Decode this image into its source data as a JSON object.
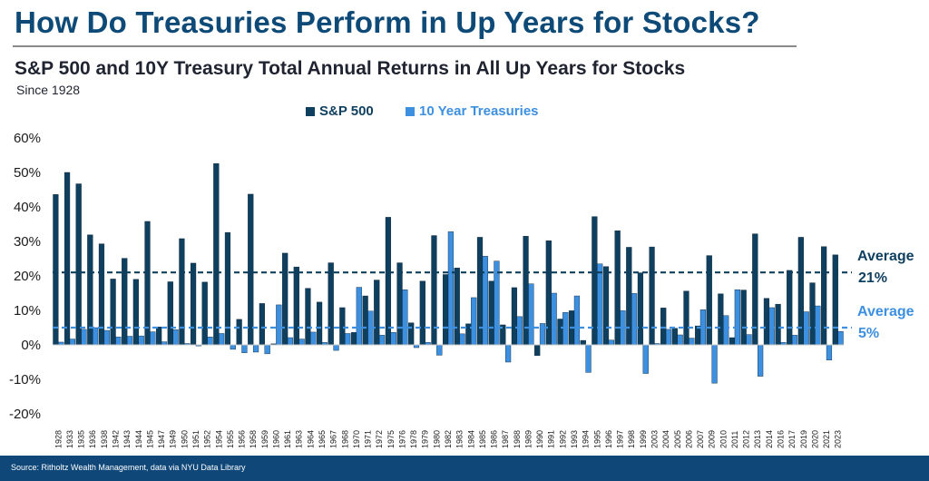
{
  "header": {
    "title": "How Do Treasuries Perform in Up Years for Stocks?",
    "subtitle": "S&P 500 and 10Y Treasury Total Annual Returns in All Up Years for Stocks",
    "since": "Since 1928"
  },
  "footer": {
    "source": "Source: Ritholtz Wealth Management, data via NYU Data Library"
  },
  "colors": {
    "sp500": "#0f3f5f",
    "treasuries": "#3d8fe0",
    "sp500_avg": "#0f3f5f",
    "treasury_avg": "#3d8fe0",
    "title": "#0d4a77",
    "footer_bg": "#0f4778"
  },
  "chart_data": {
    "type": "bar",
    "categories": [
      "1928",
      "1933",
      "1935",
      "1936",
      "1938",
      "1942",
      "1943",
      "1944",
      "1945",
      "1947",
      "1949",
      "1950",
      "1951",
      "1952",
      "1954",
      "1955",
      "1956",
      "1958",
      "1959",
      "1960",
      "1961",
      "1963",
      "1964",
      "1965",
      "1967",
      "1968",
      "1970",
      "1971",
      "1972",
      "1975",
      "1976",
      "1978",
      "1979",
      "1980",
      "1982",
      "1983",
      "1984",
      "1985",
      "1986",
      "1987",
      "1988",
      "1989",
      "1990",
      "1991",
      "1992",
      "1993",
      "1994",
      "1995",
      "1996",
      "1997",
      "1998",
      "1999",
      "2003",
      "2004",
      "2005",
      "2006",
      "2007",
      "2009",
      "2010",
      "2011",
      "2012",
      "2013",
      "2014",
      "2016",
      "2017",
      "2019",
      "2020",
      "2021",
      "2023"
    ],
    "series": [
      {
        "name": "S&P 500",
        "values": [
          43.6,
          50.0,
          46.7,
          31.9,
          29.3,
          19.1,
          25.1,
          19.0,
          35.8,
          5.2,
          18.3,
          30.8,
          23.7,
          18.2,
          52.6,
          32.6,
          7.4,
          43.7,
          12.0,
          0.3,
          26.6,
          22.6,
          16.4,
          12.4,
          23.8,
          10.8,
          3.6,
          14.2,
          18.8,
          37.0,
          23.8,
          6.4,
          18.5,
          31.7,
          20.4,
          22.3,
          6.1,
          31.2,
          18.5,
          5.8,
          16.6,
          31.5,
          -3.1,
          30.2,
          7.5,
          9.9,
          1.3,
          37.2,
          22.7,
          33.1,
          28.3,
          20.9,
          28.4,
          10.7,
          4.8,
          15.6,
          5.5,
          25.9,
          14.8,
          2.1,
          15.9,
          32.2,
          13.5,
          11.8,
          21.6,
          31.2,
          18.0,
          28.5,
          26.1
        ]
      },
      {
        "name": "10 Year Treasuries",
        "values": [
          0.8,
          1.7,
          4.5,
          5.0,
          4.2,
          2.3,
          2.5,
          2.6,
          3.8,
          0.9,
          4.4,
          0.4,
          -0.3,
          2.3,
          3.3,
          -1.3,
          -2.3,
          -2.1,
          -2.6,
          11.6,
          2.1,
          1.7,
          3.7,
          0.7,
          -1.6,
          3.3,
          16.7,
          9.8,
          2.8,
          3.6,
          16.0,
          -0.8,
          0.7,
          -3.0,
          32.8,
          3.2,
          13.7,
          25.7,
          24.3,
          -5.0,
          8.2,
          17.7,
          6.2,
          15.0,
          9.4,
          14.2,
          -8.0,
          23.5,
          1.4,
          9.9,
          14.9,
          -8.3,
          0.4,
          4.5,
          2.9,
          1.96,
          10.2,
          -11.1,
          8.5,
          16.0,
          3.0,
          -9.1,
          10.8,
          0.7,
          2.8,
          9.6,
          11.3,
          -4.4,
          3.9
        ]
      }
    ],
    "averages": [
      {
        "name": "Average",
        "value": 21,
        "label": "21%",
        "series": "S&P 500"
      },
      {
        "name": "Average",
        "value": 5,
        "label": "5%",
        "series": "10 Year Treasuries"
      }
    ],
    "y_ticks": [
      "60%",
      "50%",
      "40%",
      "30%",
      "20%",
      "10%",
      "0%",
      "-10%",
      "-20%"
    ],
    "ylim": [
      -20,
      60
    ],
    "y_unit": "%",
    "title": "S&P 500 and 10Y Treasury Total Annual Returns in All Up Years for Stocks",
    "subtitle": "Since 1928",
    "xlabel": "",
    "ylabel": "",
    "grid": false,
    "legend_position": "top"
  }
}
